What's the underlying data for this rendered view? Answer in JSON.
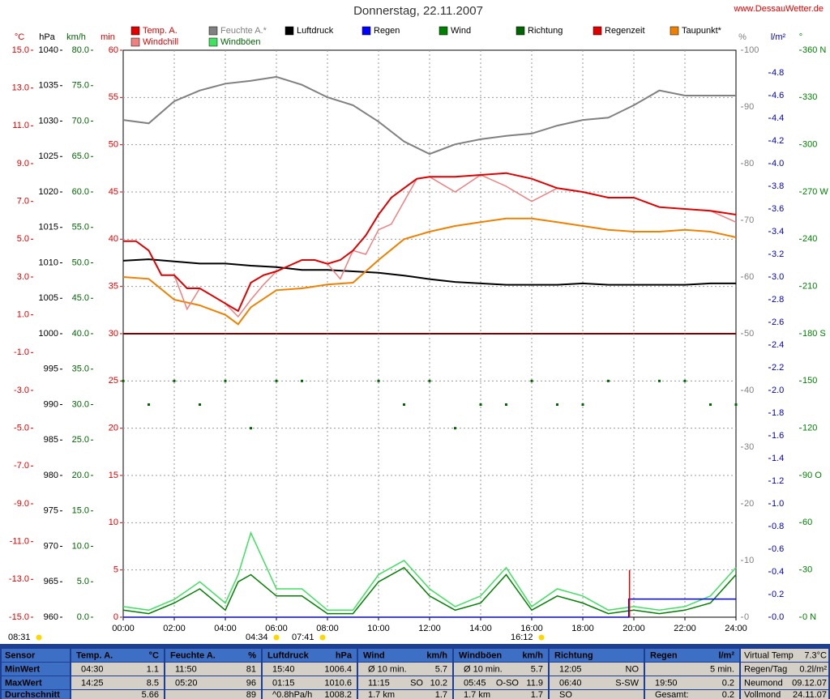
{
  "chart_data": {
    "type": "line",
    "title": "Donnerstag, 22.11.2007",
    "source": "www.DessauWetter.de",
    "grid": true,
    "xlim": [
      0,
      24
    ],
    "xticks": [
      {
        "value": 0,
        "label": "00:00"
      },
      {
        "value": 2,
        "label": "02:00"
      },
      {
        "value": 4,
        "label": "04:00"
      },
      {
        "value": 6,
        "label": "06:00"
      },
      {
        "value": 8,
        "label": "08:00"
      },
      {
        "value": 10,
        "label": "10:00"
      },
      {
        "value": 12,
        "label": "12:00"
      },
      {
        "value": 14,
        "label": "14:00"
      },
      {
        "value": 16,
        "label": "16:00"
      },
      {
        "value": 18,
        "label": "18:00"
      },
      {
        "value": 20,
        "label": "20:00"
      },
      {
        "value": 22,
        "label": "22:00"
      },
      {
        "value": 24,
        "label": "24:00"
      }
    ],
    "axes": [
      {
        "name": "°C",
        "color": "#e00000",
        "lim": [
          -15,
          15
        ],
        "ticks": [
          {
            "value": 15,
            "label": "15.0"
          },
          {
            "value": 13,
            "label": "13.0"
          },
          {
            "value": 11,
            "label": "11.0"
          },
          {
            "value": 9,
            "label": "9.0"
          },
          {
            "value": 7,
            "label": "7.0"
          },
          {
            "value": 5,
            "label": "5.0"
          },
          {
            "value": 3,
            "label": "3.0"
          },
          {
            "value": 1,
            "label": "1.0"
          },
          {
            "value": -1,
            "label": "-1.0"
          },
          {
            "value": -3,
            "label": "-3.0"
          },
          {
            "value": -5,
            "label": "-5.0"
          },
          {
            "value": -7,
            "label": "-7.0"
          },
          {
            "value": -9,
            "label": "-9.0"
          },
          {
            "value": -11,
            "label": "-11.0"
          },
          {
            "value": -13,
            "label": "-13.0"
          },
          {
            "value": -15,
            "label": "-15.0"
          }
        ]
      },
      {
        "name": "hPa",
        "color": "#000000",
        "lim": [
          960,
          1040
        ],
        "ticks": [
          1040,
          1035,
          1030,
          1025,
          1020,
          1015,
          1010,
          1005,
          1000,
          995,
          990,
          985,
          980,
          975,
          970,
          965,
          960
        ]
      },
      {
        "name": "km/h",
        "color": "#006400",
        "lim": [
          0,
          80
        ],
        "ticks": [
          {
            "value": 80,
            "label": "80.0"
          },
          {
            "value": 75,
            "label": "75.0"
          },
          {
            "value": 70,
            "label": "70.0"
          },
          {
            "value": 65,
            "label": "65.0"
          },
          {
            "value": 60,
            "label": "60.0"
          },
          {
            "value": 55,
            "label": "55.0"
          },
          {
            "value": 50,
            "label": "50.0"
          },
          {
            "value": 45,
            "label": "45.0"
          },
          {
            "value": 40,
            "label": "40.0"
          },
          {
            "value": 35,
            "label": "35.0"
          },
          {
            "value": 30,
            "label": "30.0"
          },
          {
            "value": 25,
            "label": "25.0"
          },
          {
            "value": 20,
            "label": "20.0"
          },
          {
            "value": 15,
            "label": "15.0"
          },
          {
            "value": 10,
            "label": "10.0"
          },
          {
            "value": 5,
            "label": "5.0"
          },
          {
            "value": 0,
            "label": "0.0"
          }
        ]
      },
      {
        "name": "min",
        "color": "#e00000",
        "lim": [
          0,
          60
        ],
        "ticks": [
          60,
          55,
          50,
          45,
          40,
          35,
          30,
          25,
          20,
          15,
          10,
          5,
          0
        ]
      },
      {
        "name": "%",
        "color": "#808080",
        "lim": [
          0,
          100
        ],
        "ticks": [
          100,
          90,
          80,
          70,
          60,
          50,
          40,
          30,
          20,
          10,
          0
        ]
      },
      {
        "name": "l/m²",
        "color": "#0000c0",
        "lim": [
          0,
          5
        ],
        "ticks": [
          {
            "value": 4.8,
            "label": "4.8"
          },
          {
            "value": 4.6,
            "label": "4.6"
          },
          {
            "value": 4.4,
            "label": "4.4"
          },
          {
            "value": 4.2,
            "label": "4.2"
          },
          {
            "value": 4,
            "label": "4.0"
          },
          {
            "value": 3.8,
            "label": "3.8"
          },
          {
            "value": 3.6,
            "label": "3.6"
          },
          {
            "value": 3.4,
            "label": "3.4"
          },
          {
            "value": 3.2,
            "label": "3.2"
          },
          {
            "value": 3,
            "label": "3.0"
          },
          {
            "value": 2.8,
            "label": "2.8"
          },
          {
            "value": 2.6,
            "label": "2.6"
          },
          {
            "value": 2.4,
            "label": "2.4"
          },
          {
            "value": 2.2,
            "label": "2.2"
          },
          {
            "value": 2,
            "label": "2.0"
          },
          {
            "value": 1.8,
            "label": "1.8"
          },
          {
            "value": 1.6,
            "label": "1.6"
          },
          {
            "value": 1.4,
            "label": "1.4"
          },
          {
            "value": 1.2,
            "label": "1.2"
          },
          {
            "value": 1,
            "label": "1.0"
          },
          {
            "value": 0.8,
            "label": "0.8"
          },
          {
            "value": 0.6,
            "label": "0.6"
          },
          {
            "value": 0.4,
            "label": "0.4"
          },
          {
            "value": 0.2,
            "label": "0.2"
          },
          {
            "value": 0,
            "label": "0.0"
          }
        ]
      },
      {
        "name": "°",
        "color": "#008000",
        "lim": [
          0,
          360
        ],
        "ticks": [
          {
            "value": 360,
            "label": "360 N"
          },
          330,
          300,
          {
            "value": 270,
            "label": "270 W"
          },
          240,
          210,
          {
            "value": 180,
            "label": "180 S"
          },
          150,
          120,
          {
            "value": 90,
            "label": "90 O"
          },
          60,
          30,
          {
            "value": 0,
            "label": "0 N"
          }
        ]
      }
    ],
    "series": [
      {
        "name": "Temp. A.",
        "color": "#e00000",
        "axis": 0,
        "style": "line",
        "x": [
          0,
          0.5,
          1,
          1.5,
          2,
          2.5,
          3,
          3.5,
          4,
          4.5,
          5,
          5.5,
          6,
          6.5,
          7,
          7.5,
          8,
          8.5,
          9,
          9.5,
          10,
          10.5,
          11,
          11.5,
          12,
          13,
          14,
          15,
          16,
          17,
          18,
          19,
          20,
          21,
          22,
          23,
          24
        ],
        "values": [
          4.9,
          4.9,
          4.4,
          3.1,
          3.1,
          2.4,
          2.4,
          2.0,
          1.6,
          1.2,
          2.7,
          3.1,
          3.3,
          3.6,
          3.9,
          3.9,
          3.7,
          3.9,
          4.4,
          5.2,
          6.3,
          7.2,
          7.7,
          8.2,
          8.3,
          8.3,
          8.4,
          8.5,
          8.2,
          7.7,
          7.5,
          7.2,
          7.2,
          6.7,
          6.6,
          6.5,
          6.3
        ]
      },
      {
        "name": "Windchill",
        "color": "#f08080",
        "axis": 0,
        "style": "line",
        "x": [
          0,
          0.5,
          1,
          1.5,
          2,
          2.5,
          3,
          3.5,
          4,
          4.5,
          5,
          5.5,
          6,
          6.5,
          7,
          7.5,
          8,
          8.5,
          9,
          9.5,
          10,
          10.5,
          11,
          11.5,
          12,
          13,
          14,
          15,
          16,
          17,
          18,
          19,
          20,
          21,
          22,
          23,
          24
        ],
        "values": [
          4.9,
          4.9,
          4.4,
          3.1,
          3.1,
          1.3,
          2.4,
          2.0,
          1.6,
          0.9,
          1.8,
          2.6,
          3.3,
          3.6,
          3.9,
          3.9,
          3.7,
          2.9,
          4.4,
          4.2,
          5.5,
          5.8,
          7.0,
          8.2,
          8.3,
          7.5,
          8.4,
          7.8,
          7.0,
          7.7,
          7.5,
          7.2,
          7.2,
          6.7,
          6.6,
          6.5,
          5.9
        ]
      },
      {
        "name": "Feuchte A.*",
        "color": "#808080",
        "axis": 4,
        "style": "line",
        "x": [
          0,
          1,
          2,
          3,
          4,
          5,
          6,
          7,
          8,
          9,
          10,
          11,
          12,
          13,
          14,
          15,
          16,
          17,
          18,
          19,
          20,
          21,
          22,
          23,
          24
        ],
        "values": [
          87.7,
          87.1,
          91,
          92.9,
          94.1,
          94.6,
          95.3,
          93.9,
          91.7,
          90.3,
          87.4,
          83.9,
          81.7,
          83.4,
          84.3,
          84.9,
          85.3,
          86.7,
          87.7,
          88.1,
          90.3,
          92.9,
          92,
          92,
          92
        ]
      },
      {
        "name": "Windböen",
        "color": "#40e060",
        "axis": 2,
        "style": "line",
        "x": [
          0,
          1,
          2,
          3,
          4,
          4.5,
          5,
          6,
          7,
          8,
          9,
          10,
          11,
          12,
          13,
          14,
          15,
          16,
          17,
          18,
          19,
          20,
          21,
          22,
          23,
          24
        ],
        "values": [
          1.5,
          1,
          2.5,
          5,
          2,
          6,
          11.9,
          4,
          4,
          1,
          1,
          6,
          8,
          4,
          1.5,
          3,
          7,
          1.5,
          4,
          3,
          1,
          1.5,
          1,
          1.5,
          3,
          7
        ]
      },
      {
        "name": "Luftdruck",
        "color": "#000000",
        "axis": 1,
        "style": "line",
        "x": [
          0,
          1,
          2,
          3,
          4,
          5,
          6,
          7,
          8,
          9,
          10,
          11,
          12,
          13,
          14,
          15,
          16,
          17,
          18,
          19,
          20,
          21,
          22,
          23,
          24
        ],
        "values": [
          1010.3,
          1010.5,
          1010.2,
          1009.9,
          1009.9,
          1009.6,
          1009.4,
          1009.0,
          1009.0,
          1008.8,
          1008.6,
          1008.2,
          1007.7,
          1007.3,
          1007.1,
          1006.9,
          1006.9,
          1006.9,
          1007.1,
          1006.9,
          1006.9,
          1006.9,
          1006.9,
          1007.1,
          1007.1
        ]
      },
      {
        "name": "Regen",
        "color": "#0000ff",
        "axis": 5,
        "style": "line",
        "x": [
          0,
          19.8,
          19.8,
          24
        ],
        "values": [
          0,
          0,
          0.16,
          0.16
        ]
      },
      {
        "name": "Wind",
        "color": "#008000",
        "axis": 2,
        "style": "line",
        "x": [
          0,
          1,
          2,
          3,
          4,
          4.5,
          5,
          6,
          7,
          8,
          9,
          10,
          11,
          12,
          13,
          14,
          15,
          16,
          17,
          18,
          19,
          20,
          21,
          22,
          23,
          24
        ],
        "values": [
          1,
          0.5,
          2,
          4,
          1,
          5,
          6,
          3,
          3,
          0.5,
          0.5,
          5,
          7,
          3,
          1,
          2,
          6,
          1,
          3,
          2,
          0.5,
          1,
          0.5,
          1,
          2,
          6
        ]
      },
      {
        "name": "Richtung",
        "color": "#006400",
        "axis": 6,
        "style": "dots",
        "x": [
          0,
          1,
          2,
          3,
          4,
          5,
          6,
          7,
          10,
          11,
          12,
          13,
          14,
          15,
          16,
          17,
          18,
          19,
          21,
          22,
          23,
          24
        ],
        "values": [
          150,
          135,
          150,
          135,
          150,
          120,
          150,
          150,
          150,
          135,
          150,
          120,
          135,
          135,
          150,
          135,
          135,
          150,
          150,
          150,
          135,
          135
        ]
      },
      {
        "name": "Regenzeit",
        "color": "#e00000",
        "axis": 3,
        "style": "spikes",
        "x": [
          19.83
        ],
        "values": [
          5
        ]
      },
      {
        "name": "Taupunkt*",
        "color": "#f08000",
        "axis": 0,
        "style": "line",
        "x": [
          0,
          1,
          2,
          3,
          4,
          4.5,
          5,
          6,
          7,
          8,
          9,
          10,
          11,
          12,
          13,
          14,
          15,
          16,
          17,
          18,
          19,
          20,
          21,
          22,
          23,
          24
        ],
        "values": [
          3.0,
          2.9,
          1.8,
          1.5,
          1.0,
          0.5,
          1.4,
          2.3,
          2.4,
          2.6,
          2.7,
          3.9,
          5.0,
          5.4,
          5.7,
          5.9,
          6.1,
          6.1,
          5.9,
          5.7,
          5.5,
          5.4,
          5.4,
          5.5,
          5.4,
          5.1
        ]
      }
    ],
    "astro": [
      "08:31",
      "04:34",
      "07:41",
      "16:12"
    ]
  },
  "stats": {
    "row_labels": [
      "Sensor",
      "MinWert",
      "MaxWert",
      "Durchschnitt"
    ],
    "columns": [
      {
        "name": "Temp. A.",
        "unit": "°C",
        "rows": [
          [
            "04:30",
            "1.1"
          ],
          [
            "14:25",
            "8.5"
          ],
          [
            "5.66"
          ]
        ]
      },
      {
        "name": "Feuchte A.",
        "unit": "%",
        "rows": [
          [
            "11:50",
            "81"
          ],
          [
            "05:20",
            "96"
          ],
          [
            "89"
          ]
        ]
      },
      {
        "name": "Luftdruck",
        "unit": "hPa",
        "rows": [
          [
            "15:40",
            "1006.4"
          ],
          [
            "01:15",
            "1010.6"
          ],
          [
            "^0.8hPa/h",
            "1008.2"
          ]
        ]
      },
      {
        "name": "Wind",
        "unit": "km/h",
        "rows": [
          [
            "Ø 10 min.",
            "5.7"
          ],
          [
            "11:15",
            "SO",
            "10.2"
          ],
          [
            "1.7 km",
            "1.7"
          ]
        ]
      },
      {
        "name": "Windböen",
        "unit": "km/h",
        "rows": [
          [
            "Ø 10 min.",
            "5.7"
          ],
          [
            "05:45",
            "O-SO",
            "11.9"
          ],
          [
            "1.7 km",
            "1.7"
          ]
        ]
      },
      {
        "name": "Richtung",
        "rows": [
          [
            "12:05",
            "NO"
          ],
          [
            "06:40",
            "S-SW"
          ],
          [
            "SO"
          ]
        ]
      },
      {
        "name": "Regen",
        "unit": "l/m²",
        "rows": [
          [
            "5 min."
          ],
          [
            "19:50",
            "0.2"
          ],
          [
            "Gesamt:",
            "0.2"
          ]
        ]
      }
    ],
    "info": [
      [
        "Virtual Temp",
        "7.3°C"
      ],
      [
        "Regen/Tag",
        "0.2l/m²"
      ],
      [
        "Neumond",
        "09.12.07"
      ],
      [
        "Vollmond",
        "24.11.07"
      ]
    ]
  }
}
